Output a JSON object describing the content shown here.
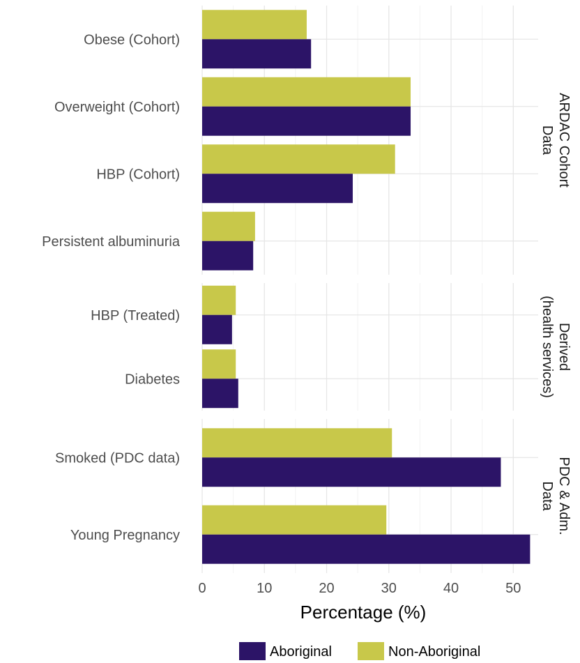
{
  "chart_data": {
    "type": "bar",
    "orientation": "horizontal",
    "xlabel": "Percentage (%)",
    "xlim": [
      0,
      54
    ],
    "xticks": [
      0,
      10,
      20,
      30,
      40,
      50
    ],
    "grid": true,
    "legend_position": "bottom",
    "series": [
      {
        "name": "Aboriginal",
        "color": "#2c1467"
      },
      {
        "name": "Non-Aboriginal",
        "color": "#c8c84a"
      }
    ],
    "panels": [
      {
        "label_lines": [
          "ARDAC Cohort",
          "Data"
        ],
        "categories": [
          "Obese (Cohort)",
          "Overweight (Cohort)",
          "HBP (Cohort)",
          "Persistent albuminuria"
        ],
        "values": {
          "Aboriginal": [
            17.5,
            33.5,
            24.2,
            8.2
          ],
          "Non-Aboriginal": [
            16.8,
            33.5,
            31.0,
            8.5
          ]
        }
      },
      {
        "label_lines": [
          "Derived",
          "(health services)"
        ],
        "categories": [
          "HBP (Treated)",
          "Diabetes"
        ],
        "values": {
          "Aboriginal": [
            4.8,
            5.8
          ],
          "Non-Aboriginal": [
            5.4,
            5.4
          ]
        }
      },
      {
        "label_lines": [
          "PDC & Adm.",
          "Data"
        ],
        "categories": [
          "Smoked (PDC data)",
          "Young Pregnancy"
        ],
        "values": {
          "Aboriginal": [
            48.0,
            52.7
          ],
          "Non-Aboriginal": [
            30.5,
            29.6
          ]
        }
      }
    ]
  }
}
